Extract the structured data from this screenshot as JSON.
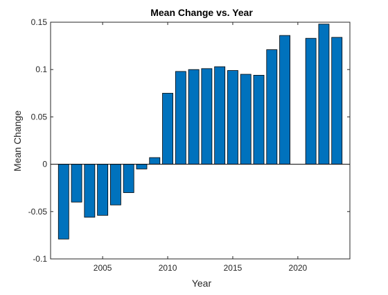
{
  "chart_data": {
    "type": "bar",
    "title": "Mean Change vs. Year",
    "xlabel": "Year",
    "ylabel": "Mean Change",
    "xlim": [
      2001,
      2024
    ],
    "ylim": [
      -0.1,
      0.15
    ],
    "xticks": [
      2005,
      2010,
      2015,
      2020
    ],
    "yticks": [
      -0.1,
      -0.05,
      0,
      0.05,
      0.1,
      0.15
    ],
    "ytick_labels": [
      "-0.1",
      "-0.05",
      "0",
      "0.05",
      "0.1",
      "0.15"
    ],
    "grid": false,
    "bar_color": "#0072BD",
    "bar_edge_color": "#000000",
    "x": [
      2002,
      2003,
      2004,
      2005,
      2006,
      2007,
      2008,
      2009,
      2010,
      2011,
      2012,
      2013,
      2014,
      2015,
      2016,
      2017,
      2018,
      2019,
      2021,
      2022,
      2023
    ],
    "values": [
      -0.079,
      -0.04,
      -0.056,
      -0.054,
      -0.043,
      -0.03,
      -0.005,
      0.007,
      0.075,
      0.098,
      0.1,
      0.101,
      0.103,
      0.099,
      0.095,
      0.094,
      0.121,
      0.136,
      0.133,
      0.148,
      0.134
    ]
  }
}
